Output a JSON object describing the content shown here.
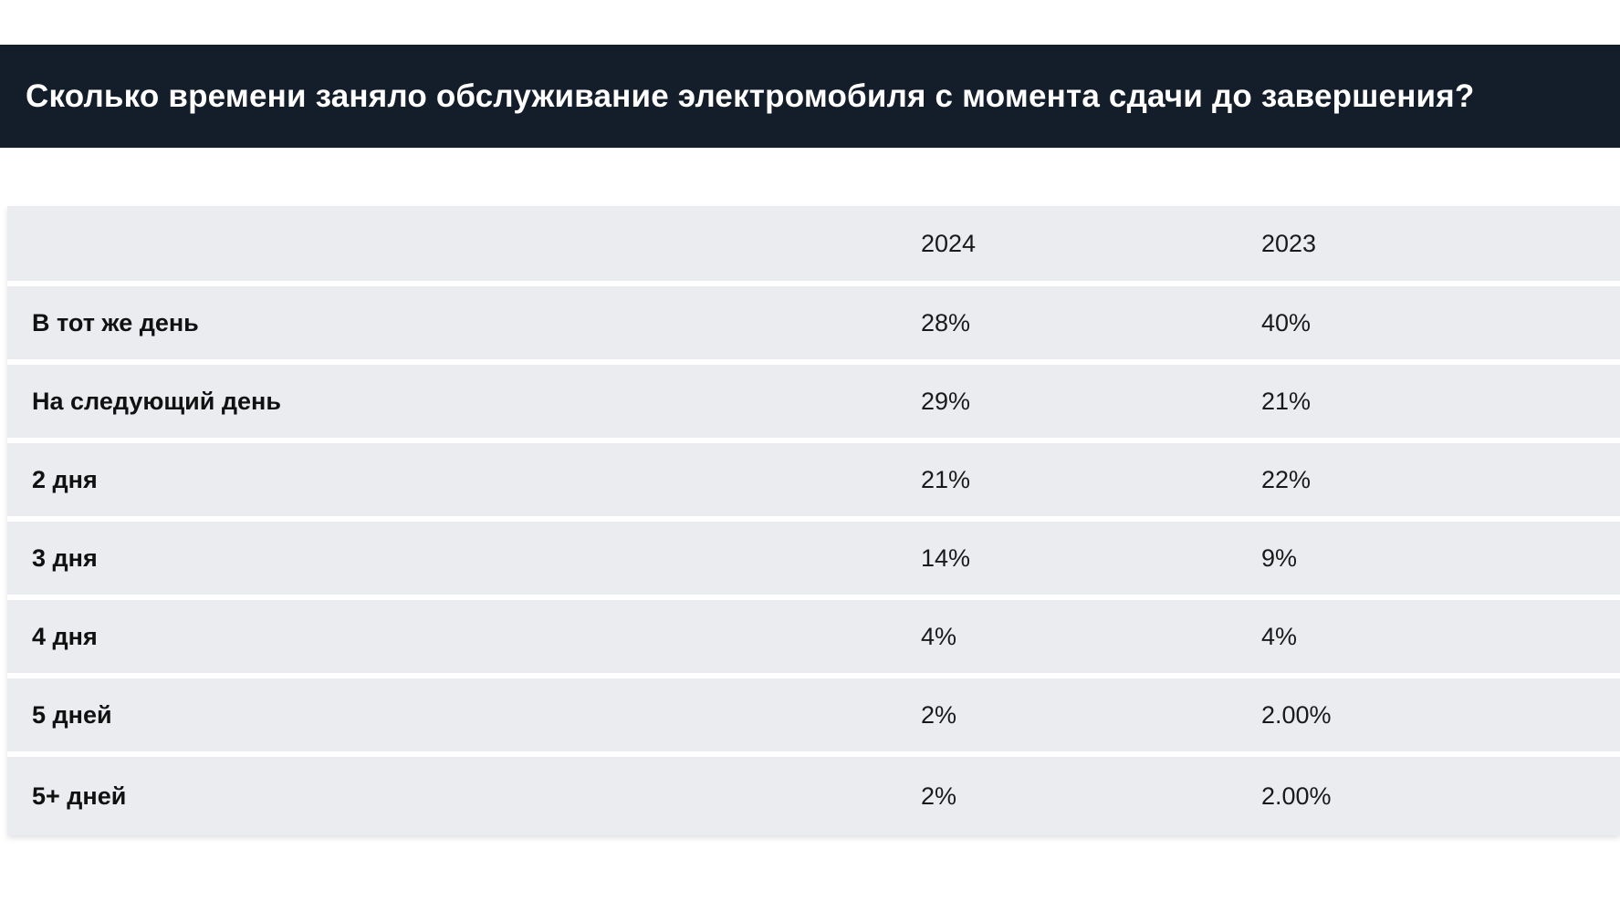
{
  "title": "Сколько времени заняло обслуживание электромобиля с момента сдачи до завершения?",
  "chart_data": {
    "type": "table",
    "columns": [
      "",
      "2024",
      "2023"
    ],
    "rows": [
      {
        "label": "В тот же день",
        "v2024": "28%",
        "v2023": "40%"
      },
      {
        "label": "На следующий день",
        "v2024": "29%",
        "v2023": "21%"
      },
      {
        "label": "2 дня",
        "v2024": "21%",
        "v2023": "22%"
      },
      {
        "label": "3 дня",
        "v2024": "14%",
        "v2023": "9%"
      },
      {
        "label": "4 дня",
        "v2024": "4%",
        "v2023": "4%"
      },
      {
        "label": "5 дней",
        "v2024": "2%",
        "v2023": "2.00%"
      },
      {
        "label": "5+ дней",
        "v2024": "2%",
        "v2023": "2.00%"
      }
    ]
  },
  "colors": {
    "title_background": "#141e2a",
    "title_text": "#ffffff",
    "row_background": "#eaecf0",
    "row_separator": "#ffffff"
  }
}
